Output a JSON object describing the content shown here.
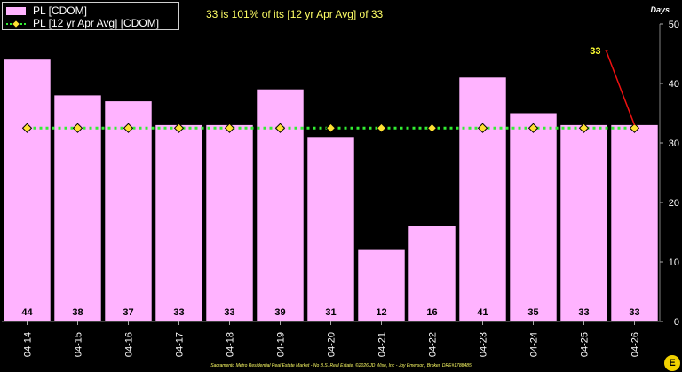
{
  "headline": "33 is 101% of its [12 yr Apr Avg] of 33",
  "unit_label": "Days",
  "footer": "Sacramento Metro Residential Real Estate Market - No B.S. Real Estate, ©2026 JD Wise, Inc - Joy Emerson, Broker, DRE#1788485",
  "legend": {
    "bar_label": "PL [CDOM]",
    "line_label": "PL [12 yr Apr Avg] [CDOM]"
  },
  "colors": {
    "bar": "#ffb3ff",
    "avg_line": "#33ee33",
    "marker": "#ffe033",
    "connector": "#ee1111",
    "callout": "#ffff33",
    "background": "#000000"
  },
  "chart_data": {
    "type": "bar",
    "categories": [
      "04-14",
      "04-15",
      "04-16",
      "04-17",
      "04-18",
      "04-19",
      "04-20",
      "04-21",
      "04-22",
      "04-23",
      "04-24",
      "04-25",
      "04-26"
    ],
    "series": [
      {
        "name": "PL [CDOM]",
        "type": "bar",
        "values": [
          44,
          38,
          37,
          33,
          33,
          39,
          31,
          12,
          16,
          41,
          35,
          33,
          33
        ]
      },
      {
        "name": "PL [12 yr Apr Avg] [CDOM]",
        "type": "line",
        "style": "dotted",
        "values": [
          32.5,
          32.5,
          32.5,
          32.5,
          32.5,
          32.5,
          32.5,
          32.5,
          32.5,
          32.5,
          32.5,
          32.5,
          32.5
        ]
      }
    ],
    "bar_value_labels": [
      "44",
      "38",
      "37",
      "33",
      "33",
      "39",
      "31",
      "12",
      "16",
      "41",
      "35",
      "33",
      "33"
    ],
    "callout": {
      "text": "33",
      "category": "04-26"
    },
    "yaxis_position": "right",
    "ylim": [
      0,
      50
    ],
    "yticks": [
      0,
      10,
      20,
      30,
      40,
      50
    ],
    "grid": false,
    "legend_position": "top-left"
  }
}
